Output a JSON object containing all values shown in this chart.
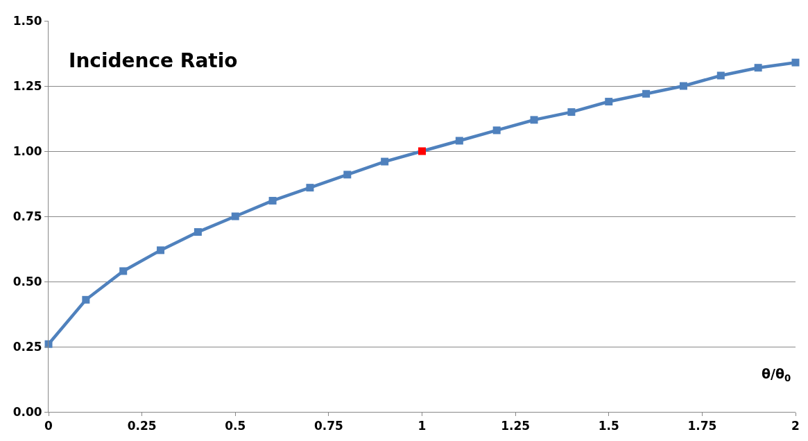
{
  "chart_data": {
    "type": "line",
    "title": "Incidence Ratio",
    "xlabel": "θ/θ$_{0}$",
    "x": [
      0,
      0.1,
      0.2,
      0.3,
      0.4,
      0.5,
      0.6,
      0.7,
      0.8,
      0.9,
      1.0,
      1.1,
      1.2,
      1.3,
      1.4,
      1.5,
      1.6,
      1.7,
      1.8,
      1.9,
      2.0
    ],
    "series": [
      {
        "color": "#4f81bd",
        "colors": [
          "#4f81bd",
          "#4f81bd",
          "#4f81bd",
          "#4f81bd",
          "#4f81bd",
          "#4f81bd",
          "#4f81bd",
          "#4f81bd",
          "#4f81bd",
          "#4f81bd",
          "#ff0000",
          "#4f81bd",
          "#4f81bd",
          "#4f81bd",
          "#4f81bd",
          "#4f81bd",
          "#4f81bd",
          "#4f81bd",
          "#4f81bd",
          "#4f81bd",
          "#4f81bd"
        ],
        "values": [
          0.26,
          0.43,
          0.54,
          0.62,
          0.69,
          0.75,
          0.81,
          0.86,
          0.91,
          0.96,
          1.0,
          1.04,
          1.08,
          1.12,
          1.15,
          1.19,
          1.22,
          1.25,
          1.29,
          1.32,
          1.34
        ]
      }
    ],
    "xlim": [
      0,
      2
    ],
    "xticks": [
      0,
      0.25,
      0.5,
      0.75,
      1,
      1.25,
      1.5,
      1.75,
      2
    ],
    "ylim": [
      0,
      1.5
    ],
    "yticks": [
      {
        "value": 0,
        "label": "0.00"
      },
      {
        "value": 0.25,
        "label": "0.25"
      },
      {
        "value": 0.5,
        "label": "0.50"
      },
      {
        "value": 0.75,
        "label": "0.75"
      },
      {
        "value": 1,
        "label": "1.00"
      },
      {
        "value": 1.25,
        "label": "1.25"
      },
      {
        "value": 1.5,
        "label": "1.50"
      }
    ],
    "grid": "y",
    "legend": false,
    "marker": "square",
    "line_style": "solid"
  }
}
